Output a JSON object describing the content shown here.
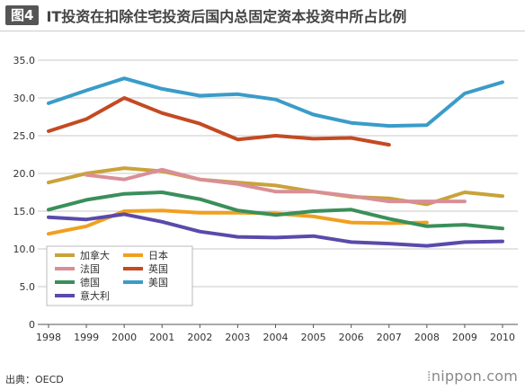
{
  "header": {
    "tag": "图4",
    "title": "IT投资在扣除住宅投资后国内总固定资本投资中所占比例"
  },
  "footer": {
    "source": "出典：OECD",
    "brand": "nippon.com"
  },
  "chart_data": {
    "type": "line",
    "title": "IT投资在扣除住宅投资后国内总固定资本投资中所占比例",
    "xlabel": "",
    "ylabel": "",
    "x": [
      "1998",
      "1999",
      "2000",
      "2001",
      "2002",
      "2003",
      "2004",
      "2005",
      "2006",
      "2007",
      "2008",
      "2009",
      "2010"
    ],
    "ylim": [
      0,
      35
    ],
    "yticks": [
      "0",
      "5.0",
      "10.0",
      "15.0",
      "20.0",
      "25.0",
      "30.0",
      "35.0"
    ],
    "grid": true,
    "legend_position": "bottom-left",
    "series": [
      {
        "name": "加拿大",
        "color": "#c9a23a",
        "values": [
          18.8,
          20.0,
          20.7,
          20.3,
          19.2,
          18.8,
          18.4,
          17.6,
          16.9,
          16.7,
          15.9,
          17.5,
          17.0
        ]
      },
      {
        "name": "日本",
        "color": "#f0a020",
        "values": [
          12.0,
          13.0,
          15.0,
          15.1,
          14.8,
          14.8,
          14.7,
          14.3,
          13.5,
          13.4,
          13.5,
          null,
          null
        ]
      },
      {
        "name": "法国",
        "color": "#d98f96",
        "values": [
          null,
          19.8,
          19.2,
          20.5,
          19.2,
          18.6,
          17.6,
          17.6,
          17.0,
          16.3,
          16.3,
          16.3,
          null
        ]
      },
      {
        "name": "英国",
        "color": "#c44a22",
        "values": [
          25.6,
          27.2,
          30.0,
          28.0,
          26.6,
          24.5,
          25.0,
          24.6,
          24.7,
          23.8,
          null,
          null,
          null
        ]
      },
      {
        "name": "德国",
        "color": "#3a8f5a",
        "values": [
          15.2,
          16.5,
          17.3,
          17.5,
          16.6,
          15.1,
          14.5,
          15.0,
          15.2,
          14.0,
          13.0,
          13.2,
          12.7
        ]
      },
      {
        "name": "美国",
        "color": "#3a9cc8",
        "values": [
          29.3,
          31.0,
          32.6,
          31.2,
          30.3,
          30.5,
          29.8,
          27.8,
          26.7,
          26.3,
          26.4,
          30.6,
          32.1
        ]
      },
      {
        "name": "意大利",
        "color": "#5a4aaa",
        "values": [
          14.2,
          13.9,
          14.6,
          13.6,
          12.3,
          11.6,
          11.5,
          11.7,
          10.9,
          10.7,
          10.4,
          10.9,
          11.0
        ]
      }
    ]
  }
}
